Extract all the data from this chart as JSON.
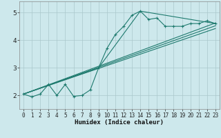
{
  "title": "",
  "xlabel": "Humidex (Indice chaleur)",
  "bg_color": "#cde8ec",
  "grid_color": "#aac8cc",
  "line_color": "#1e7a6e",
  "xlim": [
    -0.5,
    23.5
  ],
  "ylim": [
    1.5,
    5.4
  ],
  "xticks": [
    0,
    1,
    2,
    3,
    4,
    5,
    6,
    7,
    8,
    9,
    10,
    11,
    12,
    13,
    14,
    15,
    16,
    17,
    18,
    19,
    20,
    21,
    22,
    23
  ],
  "yticks": [
    2,
    3,
    4,
    5
  ],
  "main_x": [
    0,
    1,
    2,
    3,
    4,
    5,
    6,
    7,
    8,
    9,
    10,
    11,
    12,
    13,
    14,
    15,
    16,
    17,
    18,
    19,
    20,
    21,
    22,
    23
  ],
  "main_y": [
    2.05,
    1.95,
    2.05,
    2.4,
    2.0,
    2.4,
    1.97,
    2.0,
    2.2,
    3.0,
    3.7,
    4.2,
    4.5,
    4.9,
    5.05,
    4.75,
    4.8,
    4.5,
    4.5,
    4.5,
    4.6,
    4.6,
    4.7,
    4.6
  ],
  "line2_x": [
    0,
    9,
    14,
    23
  ],
  "line2_y": [
    2.05,
    3.0,
    5.05,
    4.6
  ],
  "line3_x": [
    0,
    23
  ],
  "line3_y": [
    2.05,
    4.62
  ],
  "line4_x": [
    0,
    23
  ],
  "line4_y": [
    2.05,
    4.52
  ],
  "line5_x": [
    0,
    23
  ],
  "line5_y": [
    2.05,
    4.42
  ]
}
